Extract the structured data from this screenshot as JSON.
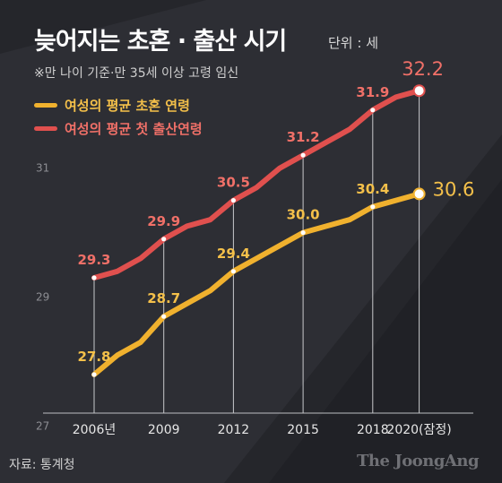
{
  "title": "늦어지는 초혼 · 출산 시기",
  "unit_note": "단위 : 세",
  "subtitle": "※만 나이 기준·만 35세 이상 고령 임신",
  "source": "자료: 통계청",
  "brand": "The JoongAng",
  "colors": {
    "background": "#25262b",
    "marriage_line": "#f0b12e",
    "marriage_label": "#f4c04a",
    "birth_line": "#e0504e",
    "birth_label": "#f07068"
  },
  "chart_data": {
    "type": "line",
    "x": [
      2006,
      2007,
      2008,
      2009,
      2010,
      2011,
      2012,
      2013,
      2014,
      2015,
      2016,
      2017,
      2018,
      2019,
      2020
    ],
    "xtick_labels": [
      {
        "x": 2006,
        "label": "2006년"
      },
      {
        "x": 2009,
        "label": "2009"
      },
      {
        "x": 2012,
        "label": "2012"
      },
      {
        "x": 2015,
        "label": "2015"
      },
      {
        "x": 2018,
        "label": "2018"
      },
      {
        "x": 2020,
        "label": "2020(잠정)"
      }
    ],
    "yticks": [
      27,
      29,
      31
    ],
    "ylim": [
      26.8,
      32.7
    ],
    "series": [
      {
        "name": "여성의 평균 초혼 연령",
        "values": [
          27.8,
          28.1,
          28.3,
          28.7,
          28.9,
          29.1,
          29.4,
          29.6,
          29.8,
          30.0,
          30.1,
          30.2,
          30.4,
          30.5,
          30.6
        ],
        "labels": [
          {
            "x": 2006,
            "text": "27.8"
          },
          {
            "x": 2009,
            "text": "28.7"
          },
          {
            "x": 2012,
            "text": "29.4"
          },
          {
            "x": 2015,
            "text": "30.0"
          },
          {
            "x": 2018,
            "text": "30.4"
          },
          {
            "x": 2020,
            "text": "30.6"
          }
        ]
      },
      {
        "name": "여성의 평균 첫 출산연령",
        "values": [
          29.3,
          29.4,
          29.6,
          29.9,
          30.1,
          30.2,
          30.5,
          30.7,
          31.0,
          31.2,
          31.4,
          31.6,
          31.9,
          32.1,
          32.2
        ],
        "labels": [
          {
            "x": 2006,
            "text": "29.3"
          },
          {
            "x": 2009,
            "text": "29.9"
          },
          {
            "x": 2012,
            "text": "30.5"
          },
          {
            "x": 2015,
            "text": "31.2"
          },
          {
            "x": 2018,
            "text": "31.9"
          },
          {
            "x": 2020,
            "text": "32.2"
          }
        ]
      }
    ],
    "legend": "top-left",
    "grid": false
  }
}
